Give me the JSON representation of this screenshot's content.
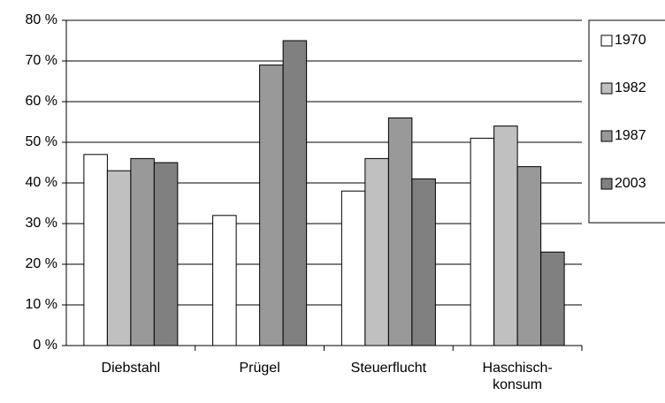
{
  "chart_data": {
    "type": "bar",
    "categories": [
      "Diebstahl",
      "Prügel",
      "Steuerflucht",
      "Haschisch-\nkonsum"
    ],
    "series": [
      {
        "name": "1970",
        "color": "#ffffff",
        "values": [
          47,
          32,
          38,
          51
        ]
      },
      {
        "name": "1982",
        "color": "#c0c0c0",
        "values": [
          43,
          null,
          46,
          54
        ]
      },
      {
        "name": "1987",
        "color": "#999999",
        "values": [
          46,
          69,
          56,
          44
        ]
      },
      {
        "name": "2003",
        "color": "#808080",
        "values": [
          45,
          75,
          41,
          23
        ]
      }
    ],
    "ylim": [
      0,
      80
    ],
    "yticks": [
      {
        "value": 0,
        "label": "0 %"
      },
      {
        "value": 10,
        "label": "10 %"
      },
      {
        "value": 20,
        "label": "20 %"
      },
      {
        "value": 30,
        "label": "30 %"
      },
      {
        "value": 40,
        "label": "40 %"
      },
      {
        "value": 50,
        "label": "50 %"
      },
      {
        "value": 60,
        "label": "60 %"
      },
      {
        "value": 70,
        "label": "70 %"
      },
      {
        "value": 80,
        "label": "80 %"
      }
    ],
    "grid": true,
    "legend": "right"
  }
}
